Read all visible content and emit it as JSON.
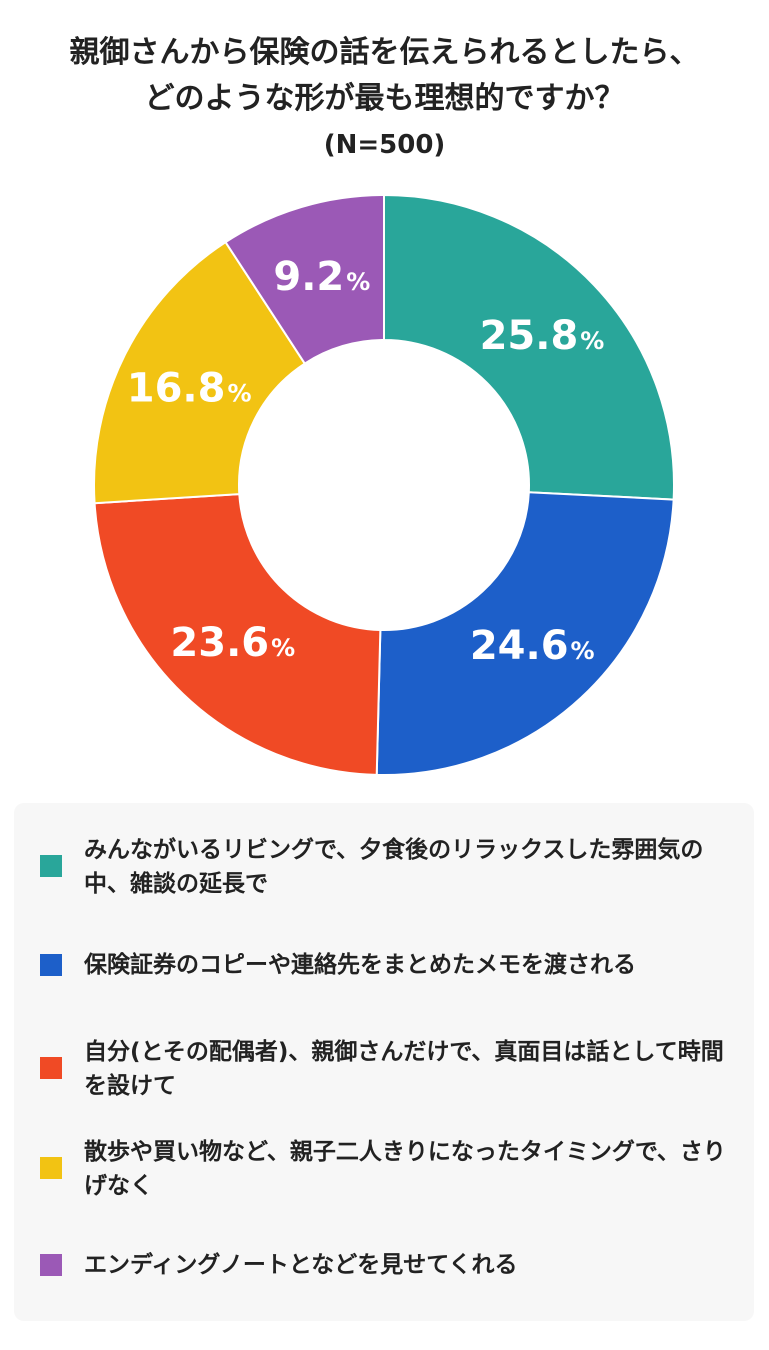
{
  "chart_data": {
    "type": "pie",
    "title": [
      "親御さんから保険の話を伝えられるとしたら、",
      "どのような形が最も理想的ですか？"
    ],
    "subtitle": "(N=500)",
    "value_unit": "%",
    "slices": [
      {
        "label": "みんながいるリビングで、夕食後のリラックスした雰囲気の中、雑談の延長で",
        "value": 25.8,
        "color": "#29a69a"
      },
      {
        "label": "保険証券のコピーや連絡先をまとめたメモを渡される",
        "value": 24.6,
        "color": "#1d5fc9"
      },
      {
        "label": "自分(とその配偶者)、親御さんだけで、真面目は話として時間を設けて",
        "value": 23.6,
        "color": "#f04a25"
      },
      {
        "label": "散歩や買い物など、親子二人きりになったタイミングで、さりげなく",
        "value": 16.8,
        "color": "#f2c313"
      },
      {
        "label": "エンディングノートとなどを見せてくれる",
        "value": 9.2,
        "color": "#9b59b6"
      }
    ],
    "legend_position": "bottom"
  }
}
